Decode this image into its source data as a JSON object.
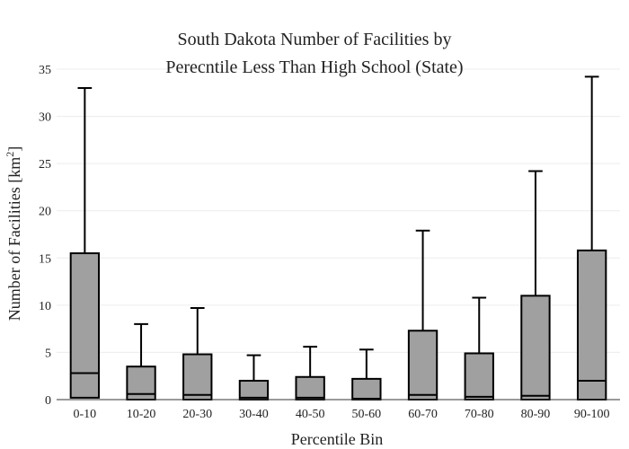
{
  "chart_data": {
    "type": "box",
    "title_lines": [
      "South Dakota Number of Facilities by",
      "Perecntile Less Than High School (State)"
    ],
    "xlabel": "Percentile Bin",
    "ylabel_main": "Number of Facilities  [km",
    "ylabel_sup": "2",
    "ylabel_end": "]",
    "ylim": [
      0,
      35
    ],
    "yticks": [
      0,
      5,
      10,
      15,
      20,
      25,
      30,
      35
    ],
    "grid": true,
    "box_color": "#a0a0a0",
    "categories": [
      "0-10",
      "10-20",
      "20-30",
      "30-40",
      "40-50",
      "50-60",
      "60-70",
      "70-80",
      "80-90",
      "90-100"
    ],
    "boxes": [
      {
        "min": 0,
        "q1": 0.2,
        "median": 2.8,
        "q3": 15.5,
        "max": 33.0
      },
      {
        "min": 0,
        "q1": 0.0,
        "median": 0.6,
        "q3": 3.5,
        "max": 8.0
      },
      {
        "min": 0,
        "q1": 0.0,
        "median": 0.5,
        "q3": 4.8,
        "max": 9.7
      },
      {
        "min": 0,
        "q1": 0.0,
        "median": 0.2,
        "q3": 2.0,
        "max": 4.7
      },
      {
        "min": 0,
        "q1": 0.0,
        "median": 0.2,
        "q3": 2.4,
        "max": 5.6
      },
      {
        "min": 0,
        "q1": 0.0,
        "median": 0.1,
        "q3": 2.2,
        "max": 5.3
      },
      {
        "min": 0,
        "q1": 0.0,
        "median": 0.5,
        "q3": 7.3,
        "max": 17.9
      },
      {
        "min": 0,
        "q1": 0.0,
        "median": 0.3,
        "q3": 4.9,
        "max": 10.8
      },
      {
        "min": 0,
        "q1": 0.0,
        "median": 0.4,
        "q3": 11.0,
        "max": 24.2
      },
      {
        "min": 0,
        "q1": 0.0,
        "median": 2.0,
        "q3": 15.8,
        "max": 34.2
      }
    ]
  }
}
